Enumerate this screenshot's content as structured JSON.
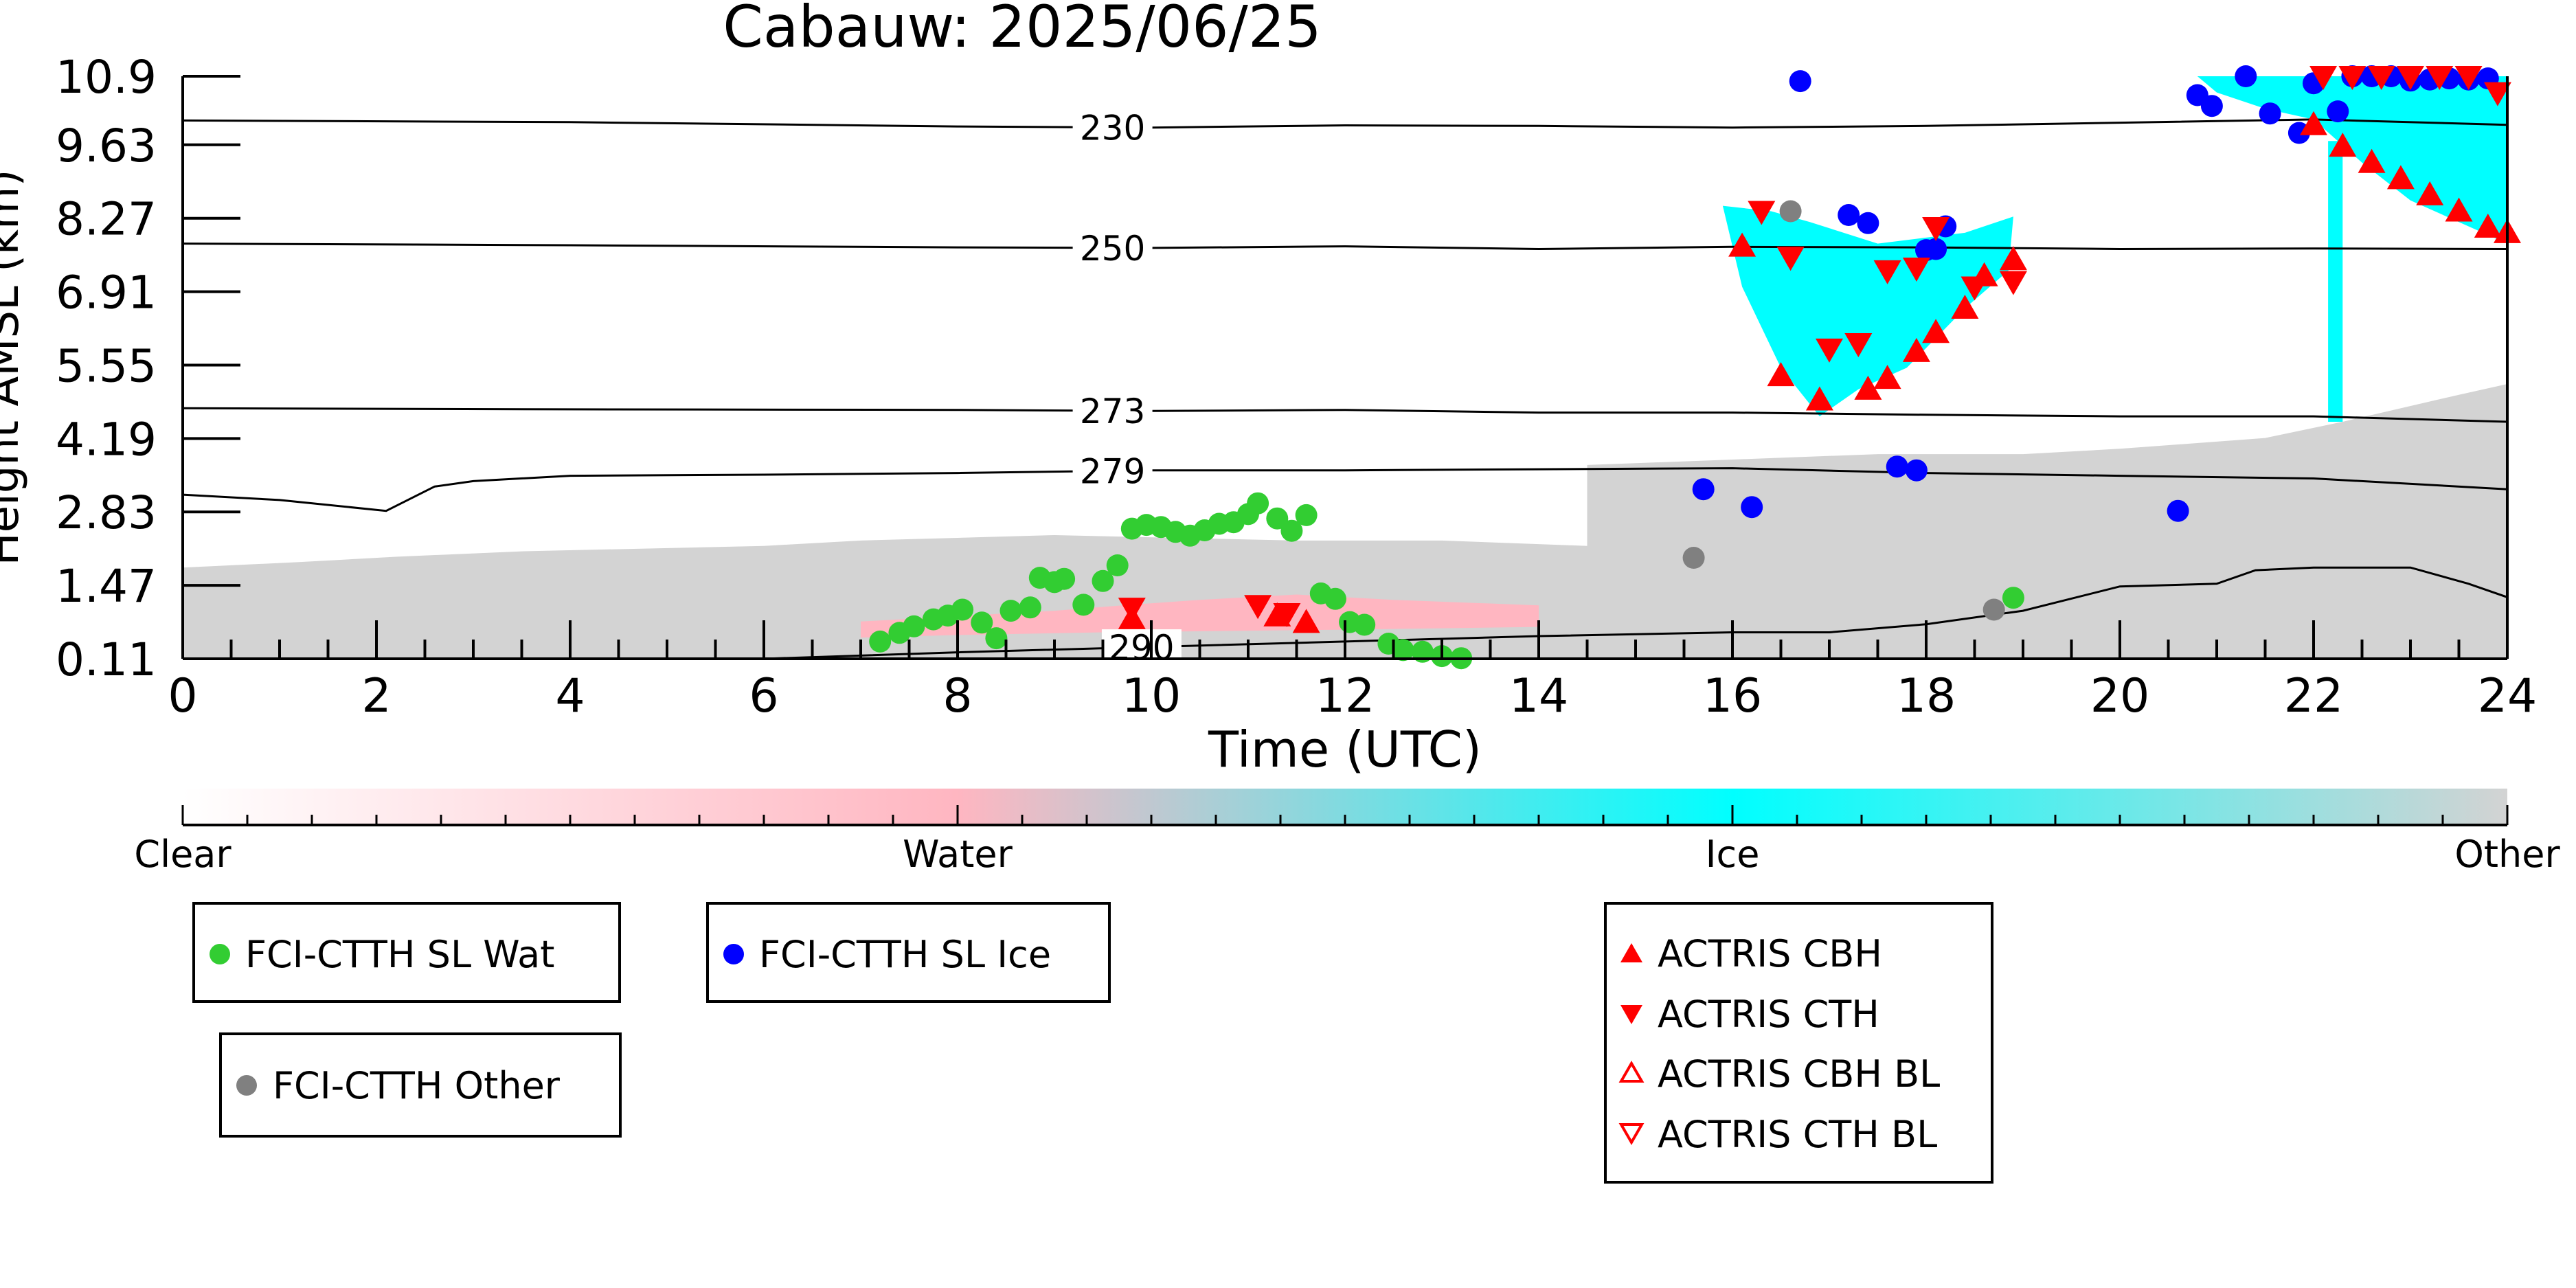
{
  "chart_data": {
    "type": "scatter",
    "title": "Cabauw: 2025/06/25",
    "xlabel": "Time (UTC)",
    "ylabel": "Height AMSL (km)",
    "xlim": [
      0,
      24
    ],
    "ylim": [
      0.11,
      10.9
    ],
    "x_ticks": [
      0,
      2,
      4,
      6,
      8,
      10,
      12,
      14,
      16,
      18,
      20,
      22,
      24
    ],
    "y_ticks": [
      "0.11",
      "1.47",
      "2.83",
      "4.19",
      "5.55",
      "6.91",
      "8.27",
      "9.63",
      "10.9"
    ],
    "y_tick_values": [
      0.11,
      1.47,
      2.83,
      4.19,
      5.55,
      6.91,
      8.27,
      9.63,
      10.9
    ],
    "colorbar": {
      "labels": [
        "Clear",
        "Water",
        "Ice",
        "Other"
      ],
      "colors": [
        "#ffffff",
        "#ffb6c1",
        "#00ffff",
        "#d3d3d3"
      ]
    },
    "classification_regions": [
      {
        "class": "Other",
        "color": "#d3d3d3",
        "points": [
          [
            0,
            0.11
          ],
          [
            0,
            1.8
          ],
          [
            1.2,
            1.9
          ],
          [
            2.2,
            2.0
          ],
          [
            3.5,
            2.1
          ],
          [
            6,
            2.2
          ],
          [
            7,
            2.3
          ],
          [
            9,
            2.4
          ],
          [
            11.5,
            2.3
          ],
          [
            13,
            2.3
          ],
          [
            14.5,
            2.2
          ],
          [
            14.5,
            3.7
          ],
          [
            16,
            3.8
          ],
          [
            17.5,
            3.9
          ],
          [
            19,
            3.9
          ],
          [
            20,
            4.0
          ],
          [
            21.5,
            4.2
          ],
          [
            22.3,
            4.5
          ],
          [
            23.5,
            5.0
          ],
          [
            24,
            5.2
          ],
          [
            24,
            0.11
          ]
        ]
      },
      {
        "class": "Water",
        "color": "#ffb6c1",
        "points": [
          [
            7,
            0.5
          ],
          [
            7,
            0.8
          ],
          [
            9,
            1.0
          ],
          [
            9.7,
            1.1
          ],
          [
            10.5,
            1.2
          ],
          [
            11.5,
            1.3
          ],
          [
            12.5,
            1.2
          ],
          [
            14,
            1.1
          ],
          [
            14,
            0.7
          ],
          [
            12,
            0.65
          ],
          [
            9.5,
            0.6
          ],
          [
            8,
            0.55
          ]
        ]
      },
      {
        "class": "Ice",
        "color": "#00ffff",
        "points": [
          [
            15.9,
            8.5
          ],
          [
            16.4,
            8.4
          ],
          [
            16.8,
            8.2
          ],
          [
            17.5,
            7.8
          ],
          [
            18.4,
            8.0
          ],
          [
            18.9,
            8.3
          ],
          [
            18.85,
            7.3
          ],
          [
            18.4,
            6.6
          ],
          [
            17.8,
            5.5
          ],
          [
            17.3,
            5.1
          ],
          [
            16.9,
            4.6
          ],
          [
            16.5,
            5.5
          ],
          [
            16.1,
            7.0
          ]
        ]
      },
      {
        "class": "Ice",
        "color": "#00ffff",
        "points": [
          [
            20.8,
            10.9
          ],
          [
            24,
            10.9
          ],
          [
            24,
            7.8
          ],
          [
            23.5,
            8.2
          ],
          [
            23,
            8.6
          ],
          [
            22.5,
            9.3
          ],
          [
            22,
            10.1
          ],
          [
            21.5,
            10.3
          ],
          [
            21,
            10.6
          ]
        ]
      },
      {
        "class": "Ice",
        "color": "#00ffff",
        "points": [
          [
            22.15,
            9.7
          ],
          [
            22.3,
            9.7
          ],
          [
            22.3,
            4.5
          ],
          [
            22.15,
            4.5
          ]
        ]
      }
    ],
    "contours": [
      {
        "label": "230",
        "label_x": 9.6,
        "points": [
          [
            0,
            10.08
          ],
          [
            4,
            10.05
          ],
          [
            8,
            9.97
          ],
          [
            10,
            9.95
          ],
          [
            12,
            9.99
          ],
          [
            14,
            9.98
          ],
          [
            16,
            9.95
          ],
          [
            18,
            9.98
          ],
          [
            20,
            10.04
          ],
          [
            22,
            10.1
          ],
          [
            24,
            10.0
          ]
        ]
      },
      {
        "label": "250",
        "label_x": 9.6,
        "points": [
          [
            0,
            7.8
          ],
          [
            4,
            7.77
          ],
          [
            8,
            7.73
          ],
          [
            10,
            7.72
          ],
          [
            12,
            7.75
          ],
          [
            14,
            7.7
          ],
          [
            16,
            7.74
          ],
          [
            18,
            7.73
          ],
          [
            20,
            7.7
          ],
          [
            22,
            7.71
          ],
          [
            24,
            7.7
          ]
        ]
      },
      {
        "label": "273",
        "label_x": 9.6,
        "points": [
          [
            0,
            4.75
          ],
          [
            4,
            4.73
          ],
          [
            8,
            4.72
          ],
          [
            10,
            4.7
          ],
          [
            12,
            4.72
          ],
          [
            14,
            4.67
          ],
          [
            16,
            4.67
          ],
          [
            18,
            4.63
          ],
          [
            20,
            4.6
          ],
          [
            22,
            4.6
          ],
          [
            24,
            4.5
          ]
        ]
      },
      {
        "label": "279",
        "label_x": 9.6,
        "points": [
          [
            0,
            3.15
          ],
          [
            1,
            3.05
          ],
          [
            2.1,
            2.85
          ],
          [
            2.6,
            3.3
          ],
          [
            3,
            3.4
          ],
          [
            4,
            3.5
          ],
          [
            6,
            3.52
          ],
          [
            8,
            3.55
          ],
          [
            10,
            3.6
          ],
          [
            12,
            3.6
          ],
          [
            14,
            3.62
          ],
          [
            16,
            3.64
          ],
          [
            18,
            3.55
          ],
          [
            20,
            3.5
          ],
          [
            22,
            3.45
          ],
          [
            24,
            3.25
          ]
        ]
      },
      {
        "label": "290",
        "label_x": 9.9,
        "points": [
          [
            6,
            0.11
          ],
          [
            8,
            0.23
          ],
          [
            10,
            0.33
          ],
          [
            12,
            0.43
          ],
          [
            14,
            0.53
          ],
          [
            16,
            0.6
          ],
          [
            17,
            0.6
          ],
          [
            18,
            0.75
          ],
          [
            19,
            1.0
          ],
          [
            20,
            1.45
          ],
          [
            21,
            1.5
          ],
          [
            21.4,
            1.75
          ],
          [
            22,
            1.8
          ],
          [
            23,
            1.8
          ],
          [
            23.6,
            1.5
          ],
          [
            24,
            1.25
          ]
        ]
      }
    ],
    "series": [
      {
        "name": "FCI-CTTH SL Wat",
        "marker": "circle",
        "color": "#32cd32",
        "x": [
          7.2,
          7.4,
          7.55,
          7.75,
          7.9,
          8.05,
          8.25,
          8.4,
          8.55,
          8.75,
          8.85,
          9.0,
          9.1,
          9.3,
          9.5,
          9.65,
          9.8,
          9.95,
          10.1,
          10.25,
          10.4,
          10.55,
          10.7,
          10.85,
          11.0,
          11.1,
          11.3,
          11.45,
          11.6,
          11.75,
          11.9,
          12.05,
          12.2,
          12.45,
          12.6,
          12.8,
          13.0,
          13.2,
          18.9
        ],
        "y": [
          0.43,
          0.59,
          0.71,
          0.84,
          0.91,
          1.02,
          0.78,
          0.49,
          1.0,
          1.06,
          1.61,
          1.53,
          1.59,
          1.11,
          1.55,
          1.84,
          2.52,
          2.59,
          2.55,
          2.46,
          2.39,
          2.49,
          2.61,
          2.64,
          2.79,
          2.99,
          2.71,
          2.48,
          2.77,
          1.32,
          1.22,
          0.79,
          0.74,
          0.39,
          0.27,
          0.24,
          0.16,
          0.12,
          1.24
        ]
      },
      {
        "name": "FCI-CTTH SL Ice",
        "marker": "circle",
        "color": "#0000ff",
        "x": [
          15.7,
          16.2,
          16.7,
          17.2,
          17.4,
          17.7,
          17.9,
          18.0,
          18.1,
          18.2,
          20.6,
          20.8,
          20.95,
          21.3,
          21.55,
          21.85,
          22.0,
          22.25,
          22.4,
          22.6,
          22.8,
          23.0,
          23.2,
          23.4,
          23.6,
          23.8
        ],
        "y": [
          3.25,
          2.92,
          10.81,
          8.33,
          8.18,
          3.67,
          3.6,
          7.68,
          7.7,
          8.12,
          2.85,
          10.55,
          10.35,
          10.9,
          10.21,
          9.85,
          10.77,
          10.25,
          10.9,
          10.9,
          10.9,
          10.82,
          10.84,
          10.86,
          10.84,
          10.86
        ]
      },
      {
        "name": "FCI-CTTH Other",
        "marker": "circle",
        "color": "#808080",
        "x": [
          15.6,
          16.6,
          18.7
        ],
        "y": [
          1.98,
          8.4,
          1.02
        ]
      },
      {
        "name": "ACTRIS CBH",
        "marker": "triangle-up",
        "color": "#ff0000",
        "x": [
          9.8,
          11.3,
          11.6,
          16.1,
          16.5,
          16.9,
          17.4,
          17.6,
          17.9,
          18.1,
          18.4,
          18.6,
          18.9,
          22.0,
          22.3,
          22.6,
          22.9,
          23.2,
          23.5,
          23.8,
          24.0
        ],
        "y": [
          0.85,
          0.9,
          0.78,
          7.75,
          5.35,
          4.9,
          5.1,
          5.3,
          5.8,
          6.15,
          6.6,
          7.2,
          7.5,
          10.0,
          9.6,
          9.3,
          9.0,
          8.7,
          8.4,
          8.1,
          8.0
        ]
      },
      {
        "name": "ACTRIS CTH",
        "marker": "triangle-down",
        "color": "#ff0000",
        "x": [
          9.8,
          11.1,
          11.4,
          16.3,
          16.6,
          17.0,
          17.3,
          17.6,
          17.9,
          18.1,
          18.5,
          18.9,
          22.1,
          22.4,
          22.7,
          23.0,
          23.3,
          23.6,
          23.9
        ],
        "y": [
          1.05,
          1.1,
          0.95,
          8.4,
          7.55,
          5.85,
          5.95,
          7.3,
          7.35,
          8.1,
          7.0,
          7.1,
          10.9,
          10.9,
          10.9,
          10.9,
          10.9,
          10.9,
          10.6
        ]
      },
      {
        "name": "ACTRIS CBH BL",
        "marker": "triangle-up-open",
        "color": "#ff0000",
        "x": [],
        "y": []
      },
      {
        "name": "ACTRIS CTH BL",
        "marker": "triangle-down-open",
        "color": "#ff0000",
        "x": [],
        "y": []
      }
    ]
  }
}
